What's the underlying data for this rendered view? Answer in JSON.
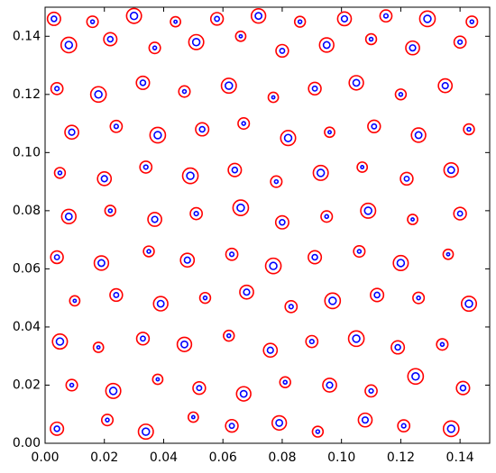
{
  "chart_data": {
    "type": "scatter",
    "color": "#ff0000",
    "inner_color": "#0000ff",
    "x": [
      0.004,
      0.021,
      0.034,
      0.05,
      0.063,
      0.079,
      0.092,
      0.108,
      0.121,
      0.137,
      0.009,
      0.023,
      0.038,
      0.052,
      0.067,
      0.081,
      0.096,
      0.11,
      0.125,
      0.141,
      0.005,
      0.018,
      0.033,
      0.047,
      0.062,
      0.076,
      0.09,
      0.105,
      0.119,
      0.134,
      0.01,
      0.024,
      0.039,
      0.054,
      0.068,
      0.083,
      0.097,
      0.112,
      0.126,
      0.143,
      0.004,
      0.019,
      0.035,
      0.048,
      0.063,
      0.077,
      0.091,
      0.106,
      0.12,
      0.136,
      0.008,
      0.022,
      0.037,
      0.051,
      0.066,
      0.08,
      0.095,
      0.109,
      0.124,
      0.14,
      0.005,
      0.02,
      0.034,
      0.049,
      0.064,
      0.078,
      0.093,
      0.107,
      0.122,
      0.137,
      0.009,
      0.024,
      0.038,
      0.053,
      0.067,
      0.082,
      0.096,
      0.111,
      0.126,
      0.143,
      0.004,
      0.018,
      0.033,
      0.047,
      0.062,
      0.077,
      0.091,
      0.105,
      0.12,
      0.135,
      0.008,
      0.022,
      0.037,
      0.051,
      0.066,
      0.08,
      0.095,
      0.11,
      0.124,
      0.14,
      0.003,
      0.016,
      0.03,
      0.044,
      0.058,
      0.072,
      0.086,
      0.101,
      0.115,
      0.129,
      0.144
    ],
    "values": [
      0.005,
      0.008,
      0.004,
      0.009,
      0.006,
      0.007,
      0.004,
      0.008,
      0.006,
      0.005,
      0.02,
      0.018,
      0.022,
      0.019,
      0.017,
      0.021,
      0.02,
      0.018,
      0.023,
      0.019,
      0.035,
      0.033,
      0.036,
      0.034,
      0.037,
      0.032,
      0.035,
      0.036,
      0.033,
      0.034,
      0.049,
      0.051,
      0.048,
      0.05,
      0.052,
      0.047,
      0.049,
      0.051,
      0.05,
      0.048,
      0.064,
      0.062,
      0.066,
      0.063,
      0.065,
      0.061,
      0.064,
      0.066,
      0.062,
      0.065,
      0.078,
      0.08,
      0.077,
      0.079,
      0.081,
      0.076,
      0.078,
      0.08,
      0.077,
      0.079,
      0.093,
      0.091,
      0.095,
      0.092,
      0.094,
      0.09,
      0.093,
      0.095,
      0.091,
      0.094,
      0.107,
      0.109,
      0.106,
      0.108,
      0.11,
      0.105,
      0.107,
      0.109,
      0.106,
      0.108,
      0.122,
      0.12,
      0.124,
      0.121,
      0.123,
      0.119,
      0.122,
      0.124,
      0.12,
      0.123,
      0.137,
      0.139,
      0.136,
      0.138,
      0.14,
      0.135,
      0.137,
      0.139,
      0.136,
      0.138,
      0.146,
      0.145,
      0.147,
      0.145,
      0.146,
      0.147,
      0.145,
      0.146,
      0.147,
      0.146,
      0.145
    ],
    "sizes": [
      0.0022,
      0.0019,
      0.0025,
      0.0017,
      0.0021,
      0.0024,
      0.0018,
      0.0023,
      0.002,
      0.0026,
      0.0019,
      0.0025,
      0.0017,
      0.0021,
      0.0024,
      0.0018,
      0.0023,
      0.002,
      0.0026,
      0.0022,
      0.0025,
      0.0017,
      0.0021,
      0.0024,
      0.0018,
      0.0023,
      0.002,
      0.0026,
      0.0022,
      0.0019,
      0.0017,
      0.0021,
      0.0024,
      0.0018,
      0.0023,
      0.002,
      0.0026,
      0.0022,
      0.0019,
      0.0025,
      0.0021,
      0.0024,
      0.0018,
      0.0023,
      0.002,
      0.0026,
      0.0022,
      0.0019,
      0.0025,
      0.0017,
      0.0024,
      0.0018,
      0.0023,
      0.002,
      0.0026,
      0.0022,
      0.0019,
      0.0025,
      0.0017,
      0.0021,
      0.0018,
      0.0023,
      0.002,
      0.0026,
      0.0022,
      0.0019,
      0.0025,
      0.0017,
      0.0021,
      0.0024,
      0.0023,
      0.002,
      0.0026,
      0.0022,
      0.0019,
      0.0025,
      0.0017,
      0.0021,
      0.0024,
      0.0018,
      0.002,
      0.0026,
      0.0022,
      0.0019,
      0.0025,
      0.0017,
      0.0021,
      0.0024,
      0.0018,
      0.0023,
      0.0026,
      0.0022,
      0.0019,
      0.0025,
      0.0017,
      0.0021,
      0.0024,
      0.0018,
      0.0023,
      0.002,
      0.0022,
      0.0019,
      0.0025,
      0.0017,
      0.0021,
      0.0024,
      0.0018,
      0.0023,
      0.002,
      0.0026,
      0.0019
    ],
    "inner_sizes": [
      0.0009,
      0.0006,
      0.0012,
      0.0005,
      0.0008,
      0.0011,
      0.0006,
      0.001,
      0.0007,
      0.0012,
      0.0006,
      0.0012,
      0.0005,
      0.0008,
      0.0011,
      0.0006,
      0.001,
      0.0007,
      0.0012,
      0.0009,
      0.0012,
      0.0005,
      0.0008,
      0.0011,
      0.0006,
      0.001,
      0.0007,
      0.0012,
      0.0009,
      0.0006,
      0.0005,
      0.0008,
      0.0011,
      0.0006,
      0.001,
      0.0007,
      0.0012,
      0.0009,
      0.0006,
      0.0012,
      0.0008,
      0.0011,
      0.0006,
      0.001,
      0.0007,
      0.0012,
      0.0009,
      0.0006,
      0.0012,
      0.0005,
      0.0011,
      0.0006,
      0.001,
      0.0007,
      0.0012,
      0.0009,
      0.0006,
      0.0012,
      0.0005,
      0.0008,
      0.0006,
      0.001,
      0.0007,
      0.0012,
      0.0009,
      0.0006,
      0.0012,
      0.0005,
      0.0008,
      0.0011,
      0.001,
      0.0007,
      0.0012,
      0.0009,
      0.0006,
      0.0012,
      0.0005,
      0.0008,
      0.0011,
      0.0006,
      0.0007,
      0.0012,
      0.0009,
      0.0006,
      0.0012,
      0.0005,
      0.0008,
      0.0011,
      0.0006,
      0.001,
      0.0012,
      0.0009,
      0.0006,
      0.0012,
      0.0005,
      0.0008,
      0.0011,
      0.0006,
      0.001,
      0.0007,
      0.0009,
      0.0006,
      0.0012,
      0.0005,
      0.0008,
      0.0011,
      0.0006,
      0.001,
      0.0007,
      0.0012,
      0.0006
    ],
    "xlim": [
      0,
      0.15
    ],
    "ylim": [
      0,
      0.15
    ],
    "xticks": [
      {
        "value": 0,
        "label": "0.00"
      },
      {
        "value": 0.02,
        "label": "0.02"
      },
      {
        "value": 0.04,
        "label": "0.04"
      },
      {
        "value": 0.06,
        "label": "0.06"
      },
      {
        "value": 0.08,
        "label": "0.08"
      },
      {
        "value": 0.1,
        "label": "0.10"
      },
      {
        "value": 0.12,
        "label": "0.12"
      },
      {
        "value": 0.14,
        "label": "0.14"
      }
    ],
    "yticks": [
      {
        "value": 0,
        "label": "0.00"
      },
      {
        "value": 0.02,
        "label": "0.02"
      },
      {
        "value": 0.04,
        "label": "0.04"
      },
      {
        "value": 0.06,
        "label": "0.06"
      },
      {
        "value": 0.08,
        "label": "0.08"
      },
      {
        "value": 0.1,
        "label": "0.10"
      },
      {
        "value": 0.12,
        "label": "0.12"
      },
      {
        "value": 0.14,
        "label": "0.14"
      }
    ]
  }
}
